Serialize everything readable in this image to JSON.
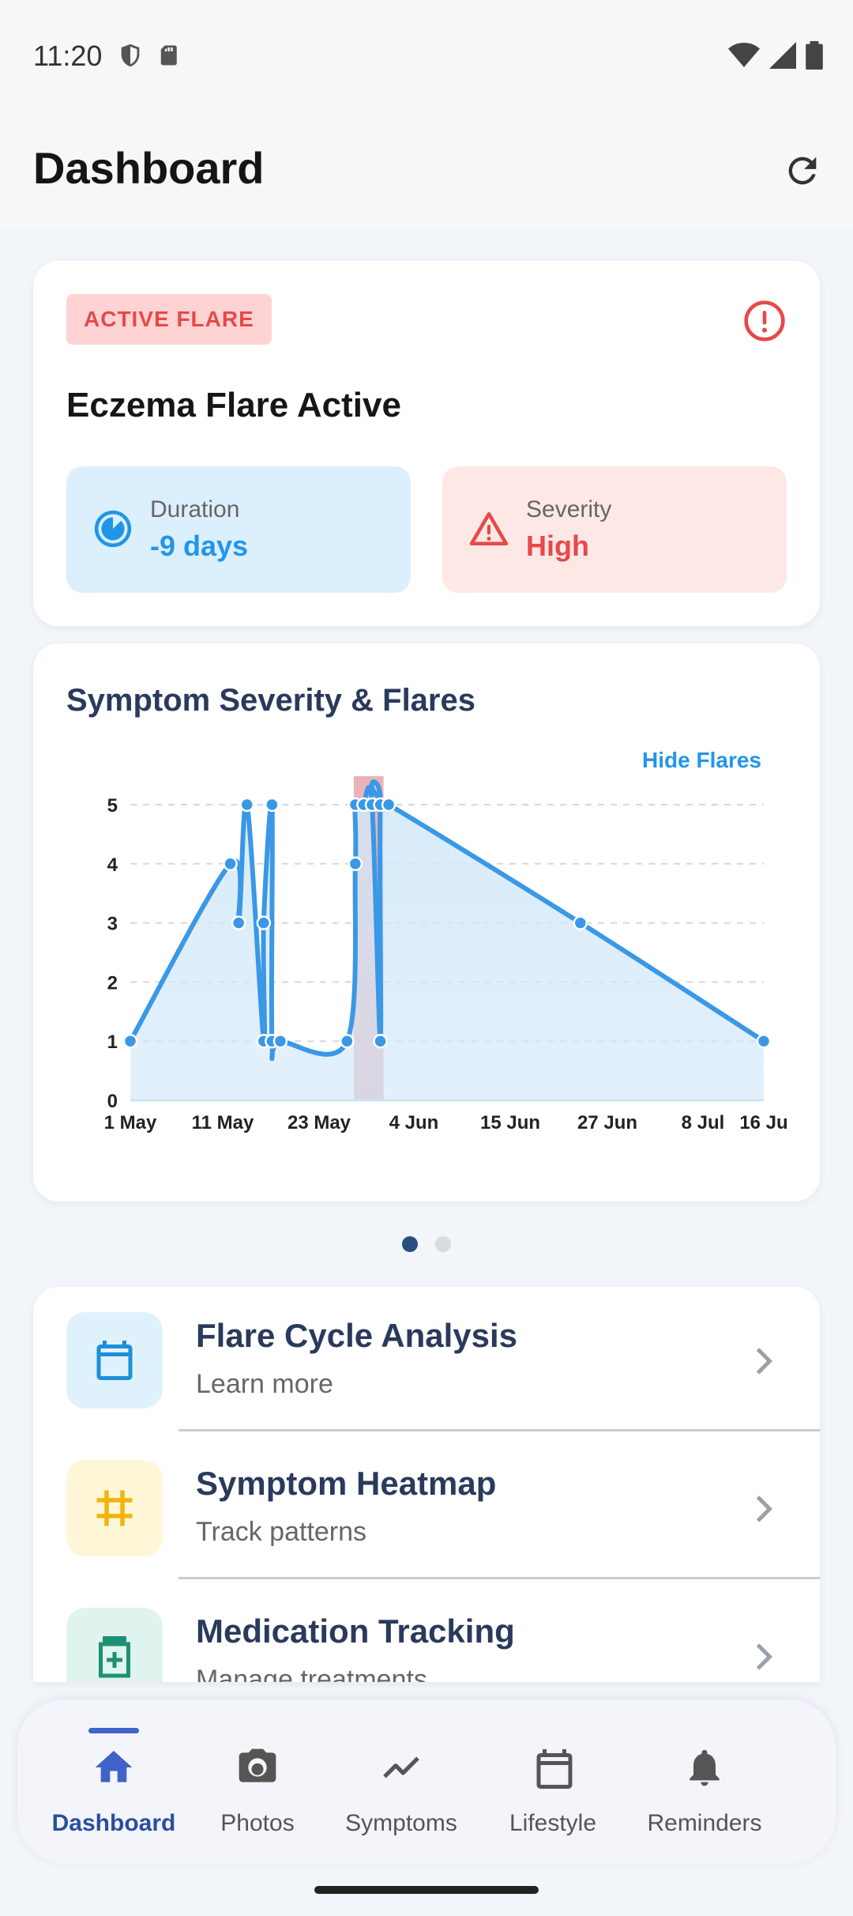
{
  "status_bar": {
    "time": "11:20"
  },
  "app_bar": {
    "title": "Dashboard"
  },
  "flare_card": {
    "badge": "ACTIVE FLARE",
    "title": "Eczema Flare Active",
    "duration_label": "Duration",
    "duration_value": "-9 days",
    "severity_label": "Severity",
    "severity_value": "High"
  },
  "chart_card": {
    "title": "Symptom Severity & Flares",
    "toggle_label": "Hide Flares"
  },
  "chart_data": {
    "type": "area",
    "title": "Symptom Severity & Flares",
    "xlabel": "",
    "ylabel": "",
    "ylim": [
      0,
      5
    ],
    "yticks": [
      "0",
      "1",
      "2",
      "3",
      "4",
      "5"
    ],
    "xticks": [
      "1 May",
      "11 May",
      "23 May",
      "4 Jun",
      "15 Jun",
      "27 Jun",
      "8 Jul",
      "16 Ju"
    ],
    "grid": true,
    "series": [
      {
        "x": [
          "2024-05-01",
          "2024-05-13",
          "2024-05-14",
          "2024-05-15",
          "2024-05-17",
          "2024-05-17",
          "2024-05-18",
          "2024-05-18",
          "2024-05-19",
          "2024-05-27",
          "2024-05-28",
          "2024-05-28",
          "2024-05-29",
          "2024-05-29",
          "2024-05-30",
          "2024-05-31",
          "2024-05-31",
          "2024-06-01",
          "2024-06-24",
          "2024-07-16"
        ],
        "values": [
          1,
          4,
          3,
          5,
          1,
          3,
          5,
          1,
          1,
          1,
          4,
          5,
          5,
          5,
          5,
          1,
          5,
          5,
          3,
          1
        ]
      }
    ],
    "flare_periods": [
      {
        "start": "2024-05-28",
        "end": "2024-05-31"
      }
    ],
    "colors": {
      "line": "#3a98e6",
      "fill": "#d2e8f9",
      "flare": "#e29aa0"
    }
  },
  "pager": {
    "count": 2,
    "active": 0
  },
  "menu_items": [
    {
      "title": "Flare Cycle Analysis",
      "subtitle": "Learn more",
      "icon": "calendar-icon",
      "tile_color": "#dff2fc",
      "icon_color": "#1e8fd8"
    },
    {
      "title": "Symptom Heatmap",
      "subtitle": "Track patterns",
      "icon": "grid-icon",
      "tile_color": "#fff6d8",
      "icon_color": "#f2b40c"
    },
    {
      "title": "Medication Tracking",
      "subtitle": "Manage treatments",
      "icon": "medication-icon",
      "tile_color": "#e0f4ef",
      "icon_color": "#1d8f74"
    }
  ],
  "bottom_nav": [
    {
      "label": "Dashboard",
      "icon": "home-icon",
      "active": true
    },
    {
      "label": "Photos",
      "icon": "camera-icon",
      "active": false
    },
    {
      "label": "Symptoms",
      "icon": "trend-icon",
      "active": false
    },
    {
      "label": "Lifestyle",
      "icon": "calendar-icon",
      "active": false
    },
    {
      "label": "Reminders",
      "icon": "bell-icon",
      "active": false
    }
  ]
}
